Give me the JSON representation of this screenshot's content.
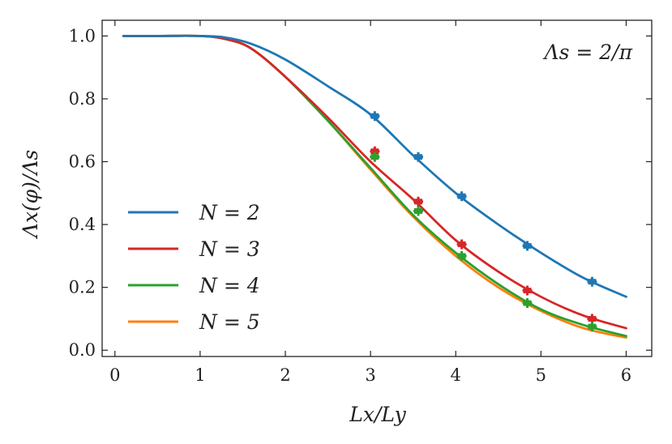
{
  "chart_data": {
    "type": "line",
    "xlabel": "Lx/Ly",
    "ylabel": "Λx(φ)/Λs",
    "annotation": "Λs = 2/π",
    "xlim": [
      -0.15,
      6.3
    ],
    "ylim": [
      -0.02,
      1.05
    ],
    "xticks": [
      0,
      1,
      2,
      3,
      4,
      5,
      6
    ],
    "yticks": [
      0.0,
      0.2,
      0.4,
      0.6,
      0.8,
      1.0
    ],
    "xtick_labels": [
      "0",
      "1",
      "2",
      "3",
      "4",
      "5",
      "6"
    ],
    "ytick_labels": [
      "0.0",
      "0.2",
      "0.4",
      "0.6",
      "0.8",
      "1.0"
    ],
    "legend_position": "lower-left",
    "series": [
      {
        "name": "N = 2",
        "color": "#1f77b4",
        "x": [
          0.1,
          0.5,
          1.0,
          1.3,
          1.6,
          2.0,
          2.5,
          3.0,
          3.5,
          4.0,
          4.5,
          5.0,
          5.5,
          6.0
        ],
        "y": [
          1.0,
          1.0,
          1.0,
          0.995,
          0.975,
          0.925,
          0.84,
          0.75,
          0.62,
          0.5,
          0.4,
          0.31,
          0.23,
          0.17
        ],
        "markers_x": [
          3.05,
          3.56,
          4.07,
          4.84,
          5.6
        ],
        "markers_y": [
          0.745,
          0.615,
          0.49,
          0.332,
          0.218
        ]
      },
      {
        "name": "N = 3",
        "color": "#d62728",
        "x": [
          0.1,
          0.5,
          1.0,
          1.3,
          1.6,
          2.0,
          2.5,
          3.0,
          3.5,
          4.0,
          4.5,
          5.0,
          5.5,
          6.0
        ],
        "y": [
          1.0,
          1.0,
          1.0,
          0.99,
          0.96,
          0.87,
          0.74,
          0.6,
          0.48,
          0.35,
          0.25,
          0.17,
          0.11,
          0.07
        ],
        "markers_x": [
          3.05,
          3.56,
          4.07,
          4.84,
          5.6
        ],
        "markers_y": [
          0.633,
          0.473,
          0.337,
          0.19,
          0.1
        ]
      },
      {
        "name": "N = 4",
        "color": "#2ca02c",
        "x": [
          0.1,
          0.5,
          1.0,
          1.3,
          1.6,
          2.0,
          2.5,
          3.0,
          3.5,
          4.0,
          4.5,
          5.0,
          5.5,
          6.0
        ],
        "y": [
          1.0,
          1.0,
          1.0,
          0.99,
          0.96,
          0.87,
          0.73,
          0.58,
          0.43,
          0.31,
          0.21,
          0.13,
          0.08,
          0.045
        ],
        "markers_x": [
          3.05,
          3.56,
          4.07,
          4.84,
          5.6
        ],
        "markers_y": [
          0.615,
          0.443,
          0.3,
          0.15,
          0.075
        ]
      },
      {
        "name": "N = 5",
        "color": "#ff7f0e",
        "x": [
          0.1,
          0.5,
          1.0,
          1.3,
          1.6,
          2.0,
          2.5,
          3.0,
          3.5,
          4.0,
          4.5,
          5.0,
          5.5,
          6.0
        ],
        "y": [
          1.0,
          1.0,
          1.0,
          0.99,
          0.96,
          0.87,
          0.73,
          0.575,
          0.425,
          0.3,
          0.2,
          0.125,
          0.07,
          0.04
        ],
        "markers_x": [],
        "markers_y": []
      }
    ]
  }
}
